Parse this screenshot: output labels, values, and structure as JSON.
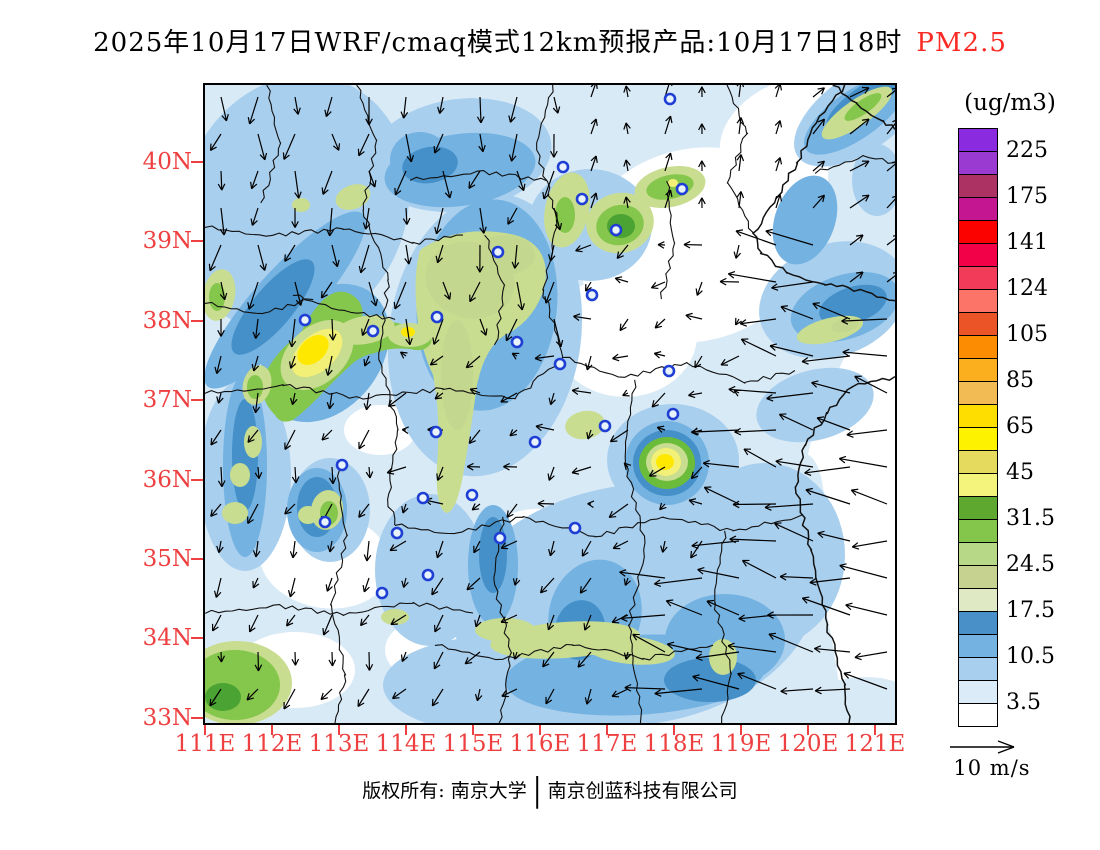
{
  "title": {
    "prefix": "2025年10月17日WRF/cmaq模式12km预报产品:10月17日18时",
    "pollutant": "PM2.5"
  },
  "axes": {
    "lat": [
      "40N",
      "39N",
      "38N",
      "37N",
      "36N",
      "35N",
      "34N",
      "33N"
    ],
    "lon": [
      "111E",
      "112E",
      "113E",
      "114E",
      "115E",
      "116E",
      "117E",
      "118E",
      "119E",
      "120E",
      "121E"
    ]
  },
  "legend": {
    "unit": "(ug/m3)",
    "labels": [
      "225",
      "175",
      "141",
      "124",
      "105",
      "85",
      "65",
      "45",
      "31.5",
      "24.5",
      "17.5",
      "10.5",
      "3.5"
    ],
    "band_colors": [
      "#8a2be0",
      "#9b3ad0",
      "#ad3264",
      "#c41690",
      "#fb0200",
      "#f20048",
      "#f23b58",
      "#fc7468",
      "#ea5426",
      "#fc8d02",
      "#fbaf1e",
      "#f2bb54",
      "#fede00",
      "#fdf200",
      "#e6da5e",
      "#f4f47c",
      "#5fa830",
      "#84c64c",
      "#b7d987",
      "#c6d390",
      "#dfe9c4",
      "#4a90c8",
      "#73b2e1",
      "#a9cfee",
      "#dcebf8",
      "#ffffff"
    ]
  },
  "wind_reference": {
    "label": "10 m/s"
  },
  "footer": {
    "owner": "版权所有: 南京大学",
    "separator": "|",
    "company": "南京创蓝科技有限公司"
  },
  "colors": {
    "axis_labels": "#ee4040",
    "pollutant_highlight": "#fb2a24",
    "map_palette": {
      "light_blue": "#d9eaf7",
      "medium_blue": "#a9cfee",
      "strong_blue": "#73b2e1",
      "dark_blue": "#4590c8",
      "pale_green": "#c9dd90",
      "green": "#85c64c",
      "dark_green": "#4aa332",
      "pale_yellow": "#f2f077",
      "yellow": "#ffe800"
    }
  }
}
